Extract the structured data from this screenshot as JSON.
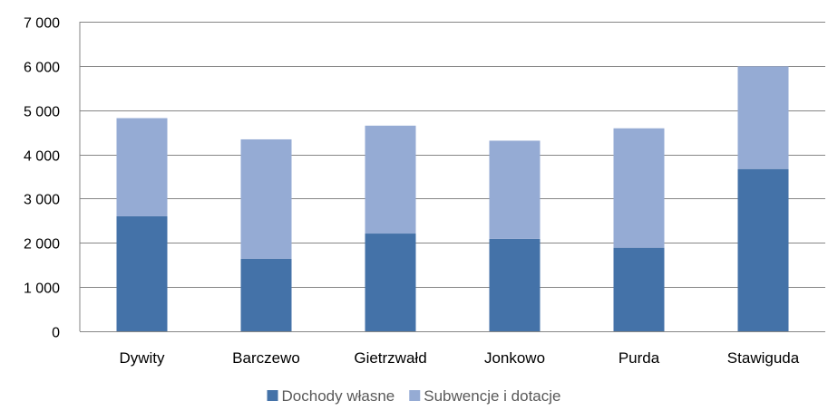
{
  "chart_data": {
    "type": "bar",
    "stacked": true,
    "categories": [
      "Dywity",
      "Barczewo",
      "Gietrzwałd",
      "Jonkowo",
      "Purda",
      "Stawiguda"
    ],
    "series": [
      {
        "name": "Dochody własne",
        "color": "#4472a8",
        "values": [
          2600,
          1640,
          2210,
          2090,
          1890,
          3670
        ]
      },
      {
        "name": "Subwencje i dotacje",
        "color": "#95abd4",
        "values": [
          2220,
          2700,
          2440,
          2220,
          2700,
          2320
        ]
      }
    ],
    "ylim": [
      0,
      7000
    ],
    "yticks": [
      0,
      1000,
      2000,
      3000,
      4000,
      5000,
      6000,
      7000
    ],
    "ytick_labels": [
      "0",
      "1 000",
      "2 000",
      "3 000",
      "4 000",
      "5 000",
      "6 000",
      "7 000"
    ],
    "grid": true,
    "legend_position": "bottom",
    "title": "",
    "xlabel": "",
    "ylabel": ""
  }
}
